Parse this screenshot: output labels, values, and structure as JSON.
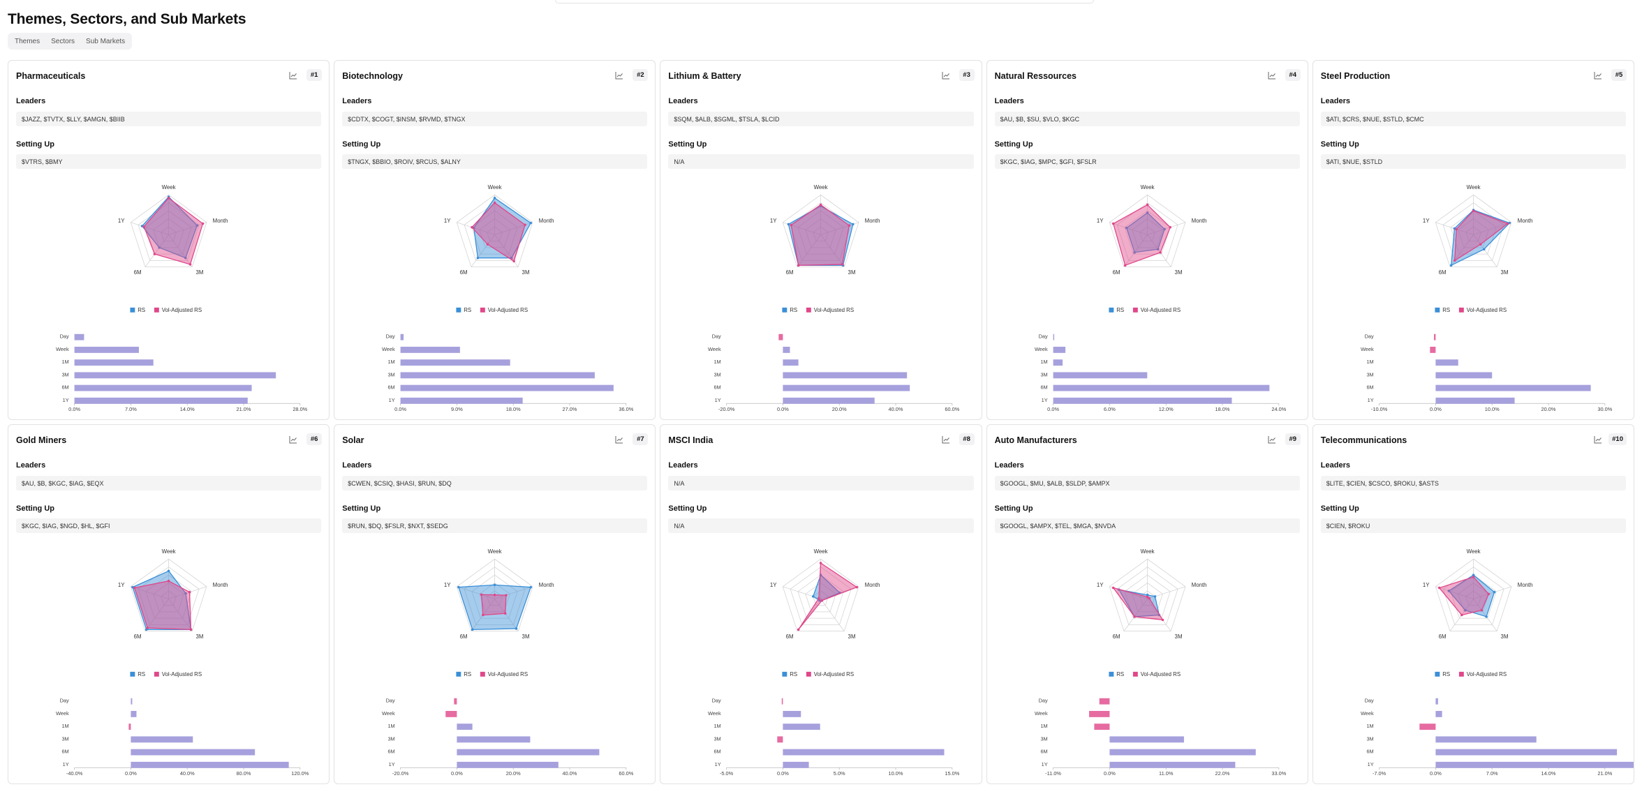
{
  "page": {
    "title": "Themes, Sectors, and Sub Markets"
  },
  "tabs": [
    {
      "label": "Themes",
      "active": true
    },
    {
      "label": "Sectors",
      "active": false
    },
    {
      "label": "Sub Markets",
      "active": false
    }
  ],
  "labels": {
    "leaders": "Leaders",
    "setting_up": "Setting Up",
    "legend_rs": "RS",
    "legend_vol": "Vol-Adjusted RS"
  },
  "colors": {
    "rs": "#3a8fd8",
    "vol": "#e0468a",
    "overlap": "#9c97d9"
  },
  "radar_axes": [
    "Week",
    "Month",
    "3M",
    "6M",
    "1Y"
  ],
  "bar_rows": [
    "Day",
    "Week",
    "1M",
    "3M",
    "6M",
    "1Y"
  ],
  "cards": [
    {
      "name": "Pharmaceuticals",
      "rank": "#1",
      "leaders": "$JAZZ, $TVTX, $LLY, $AMGN, $BIIB",
      "setting_up": "$VTRS, $BMY",
      "radar_rs": [
        0.95,
        0.75,
        0.72,
        0.4,
        0.7
      ],
      "radar_vol": [
        0.92,
        0.9,
        0.92,
        0.6,
        0.65
      ],
      "bars": [
        1.2,
        8.0,
        9.8,
        25.0,
        22.0,
        21.5
      ],
      "ticks": [
        "0.0%",
        "7.0%",
        "14.0%",
        "21.0%",
        "28.0%"
      ],
      "xmin": 0,
      "xmax": 28
    },
    {
      "name": "Biotechnology",
      "rank": "#2",
      "leaders": "$CDTX, $COGT, $INSM, $RVMD, $TNGX",
      "setting_up": "$TNGX, $BBIO, $ROIV, $RCUS, $ALNY",
      "radar_rs": [
        0.92,
        0.95,
        0.72,
        0.72,
        0.55
      ],
      "radar_vol": [
        0.8,
        0.8,
        0.82,
        0.3,
        0.6
      ],
      "bars": [
        0.5,
        9.5,
        17.5,
        31.0,
        34.0,
        19.5
      ],
      "ticks": [
        "0.0%",
        "9.0%",
        "18.0%",
        "27.0%",
        "36.0%"
      ],
      "xmin": 0,
      "xmax": 36
    },
    {
      "name": "Lithium & Battery",
      "rank": "#3",
      "leaders": "$SQM, $ALB, $SGML, $TSLA, $LCID",
      "setting_up": "N/A",
      "radar_rs": [
        0.72,
        0.85,
        0.95,
        0.95,
        0.85
      ],
      "radar_vol": [
        0.75,
        0.75,
        0.92,
        0.95,
        0.78
      ],
      "bars": [
        -1.5,
        2.5,
        5.5,
        44.0,
        45.0,
        32.5
      ],
      "ticks": [
        "-20.0%",
        "0.0%",
        "20.0%",
        "40.0%",
        "60.0%"
      ],
      "xmin": -20,
      "xmax": 60
    },
    {
      "name": "Natural Ressources",
      "rank": "#4",
      "leaders": "$AU, $B, $SU, $VLO, $KGC",
      "setting_up": "$KGC, $IAG, $MPC, $GFI, $FSLR",
      "radar_rs": [
        0.55,
        0.45,
        0.45,
        0.55,
        0.55
      ],
      "radar_vol": [
        0.75,
        0.6,
        0.55,
        0.95,
        0.9
      ],
      "bars": [
        0.05,
        1.3,
        1.0,
        10.0,
        23.0,
        19.0
      ],
      "ticks": [
        "0.0%",
        "6.0%",
        "12.0%",
        "18.0%",
        "24.0%"
      ],
      "xmin": 0,
      "xmax": 24
    },
    {
      "name": "Steel Production",
      "rank": "#5",
      "leaders": "$ATI, $CRS, $NUE, $STLD, $CMC",
      "setting_up": "$ATI, $NUE, $STLD",
      "radar_rs": [
        0.62,
        0.95,
        0.45,
        0.95,
        0.5
      ],
      "radar_vol": [
        0.6,
        0.9,
        0.3,
        0.8,
        0.45
      ],
      "bars": [
        -0.3,
        -1.0,
        4.0,
        10.0,
        27.5,
        14.0
      ],
      "ticks": [
        "-10.0%",
        "0.0%",
        "10.0%",
        "20.0%",
        "30.0%"
      ],
      "xmin": -10,
      "xmax": 30
    },
    {
      "name": "Gold Miners",
      "rank": "#6",
      "leaders": "$AU, $B, $KGC, $IAG, $EQX",
      "setting_up": "$KGC, $IAG, $NGD, $HL, $GFI",
      "radar_rs": [
        0.7,
        0.45,
        0.95,
        0.95,
        0.95
      ],
      "radar_vol": [
        0.45,
        0.55,
        0.95,
        0.9,
        0.9
      ],
      "bars": [
        1.0,
        4.0,
        -1.5,
        44.0,
        88.0,
        112.0
      ],
      "ticks": [
        "-40.0%",
        "0.0%",
        "40.0%",
        "80.0%",
        "120.0%"
      ],
      "xmin": -40,
      "xmax": 120
    },
    {
      "name": "Solar",
      "rank": "#7",
      "leaders": "$CWEN, $CSIQ, $HASI, $RUN, $DQ",
      "setting_up": "$RUN, $DQ, $FSLR, $NXT, $SEDG",
      "radar_rs": [
        0.35,
        0.95,
        0.92,
        0.95,
        0.95
      ],
      "radar_vol": [
        0.1,
        0.3,
        0.45,
        0.5,
        0.35
      ],
      "bars": [
        -1.0,
        -4.0,
        5.5,
        26.0,
        50.5,
        36.0
      ],
      "ticks": [
        "-20.0%",
        "0.0%",
        "20.0%",
        "40.0%",
        "60.0%"
      ],
      "xmin": -20,
      "xmax": 60
    },
    {
      "name": "MSCI India",
      "rank": "#8",
      "leaders": "N/A",
      "setting_up": "N/A",
      "radar_rs": [
        0.6,
        0.5,
        0.05,
        0.05,
        0.2
      ],
      "radar_vol": [
        0.9,
        0.95,
        0.05,
        0.95,
        0.05
      ],
      "bars": [
        -0.1,
        1.6,
        3.3,
        -0.5,
        14.3,
        2.3
      ],
      "ticks": [
        "-5.0%",
        "0.0%",
        "5.0%",
        "10.0%",
        "15.0%"
      ],
      "xmin": -5,
      "xmax": 15
    },
    {
      "name": "Auto Manufacturers",
      "rank": "#9",
      "leaders": "$GOOGL, $MU, $ALB, $SLDP, $AMPX",
      "setting_up": "$GOOGL, $AMPX, $TEL, $MGA, $NVDA",
      "radar_rs": [
        0.1,
        0.2,
        0.5,
        0.55,
        0.75
      ],
      "radar_vol": [
        0.05,
        0.05,
        0.65,
        0.55,
        0.9
      ],
      "bars": [
        -2.0,
        -4.0,
        -3.0,
        14.5,
        28.5,
        24.5
      ],
      "ticks": [
        "-11.0%",
        "0.0%",
        "11.0%",
        "22.0%",
        "33.0%"
      ],
      "xmin": -11,
      "xmax": 33
    },
    {
      "name": "Telecommunications",
      "rank": "#10",
      "leaders": "$LITE, $CIEN, $CSCO, $ROKU, $ASTS",
      "setting_up": "$CIEN, $ROKU",
      "radar_rs": [
        0.6,
        0.55,
        0.55,
        0.35,
        0.65
      ],
      "radar_vol": [
        0.55,
        0.4,
        0.35,
        0.5,
        0.9
      ],
      "bars": [
        0.3,
        0.8,
        -2.0,
        12.5,
        22.5,
        25.5
      ],
      "ticks": [
        "-7.0%",
        "0.0%",
        "7.0%",
        "14.0%",
        "21.0%"
      ],
      "xmin": -7,
      "xmax": 21
    }
  ]
}
